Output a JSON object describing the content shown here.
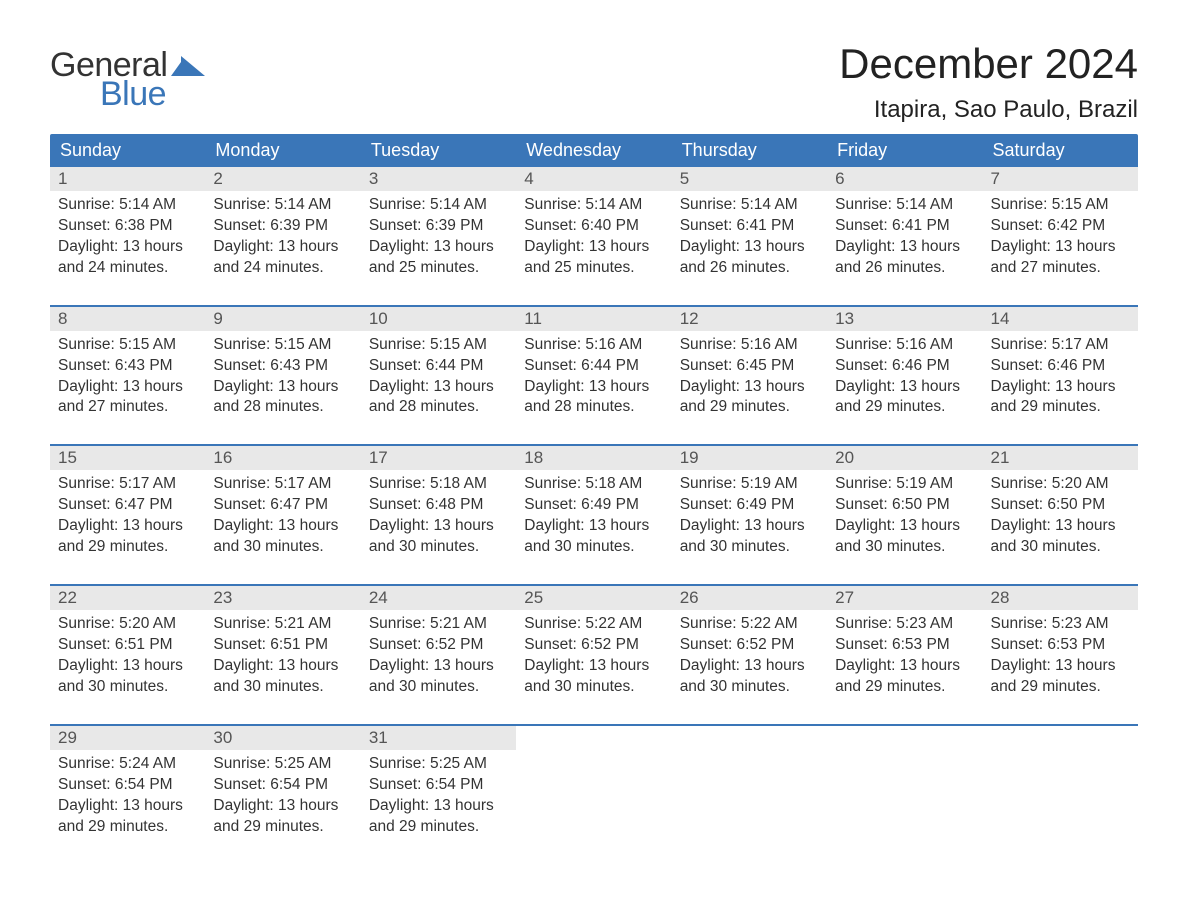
{
  "brand": {
    "word1": "General",
    "word2": "Blue",
    "text_color_1": "#333333",
    "text_color_2": "#3a76b8",
    "shape_color": "#3a76b8"
  },
  "title": {
    "month_year": "December 2024",
    "location": "Itapira, Sao Paulo, Brazil"
  },
  "theme": {
    "header_bg": "#3a76b8",
    "header_fg": "#ffffff",
    "daynum_bg": "#e8e8e8",
    "week_divider": "#3a76b8",
    "page_bg": "#ffffff",
    "body_text": "#333333"
  },
  "weekdays": [
    "Sunday",
    "Monday",
    "Tuesday",
    "Wednesday",
    "Thursday",
    "Friday",
    "Saturday"
  ],
  "weeks": [
    [
      {
        "n": "1",
        "sunrise": "Sunrise: 5:14 AM",
        "sunset": "Sunset: 6:38 PM",
        "day1": "Daylight: 13 hours",
        "day2": "and 24 minutes."
      },
      {
        "n": "2",
        "sunrise": "Sunrise: 5:14 AM",
        "sunset": "Sunset: 6:39 PM",
        "day1": "Daylight: 13 hours",
        "day2": "and 24 minutes."
      },
      {
        "n": "3",
        "sunrise": "Sunrise: 5:14 AM",
        "sunset": "Sunset: 6:39 PM",
        "day1": "Daylight: 13 hours",
        "day2": "and 25 minutes."
      },
      {
        "n": "4",
        "sunrise": "Sunrise: 5:14 AM",
        "sunset": "Sunset: 6:40 PM",
        "day1": "Daylight: 13 hours",
        "day2": "and 25 minutes."
      },
      {
        "n": "5",
        "sunrise": "Sunrise: 5:14 AM",
        "sunset": "Sunset: 6:41 PM",
        "day1": "Daylight: 13 hours",
        "day2": "and 26 minutes."
      },
      {
        "n": "6",
        "sunrise": "Sunrise: 5:14 AM",
        "sunset": "Sunset: 6:41 PM",
        "day1": "Daylight: 13 hours",
        "day2": "and 26 minutes."
      },
      {
        "n": "7",
        "sunrise": "Sunrise: 5:15 AM",
        "sunset": "Sunset: 6:42 PM",
        "day1": "Daylight: 13 hours",
        "day2": "and 27 minutes."
      }
    ],
    [
      {
        "n": "8",
        "sunrise": "Sunrise: 5:15 AM",
        "sunset": "Sunset: 6:43 PM",
        "day1": "Daylight: 13 hours",
        "day2": "and 27 minutes."
      },
      {
        "n": "9",
        "sunrise": "Sunrise: 5:15 AM",
        "sunset": "Sunset: 6:43 PM",
        "day1": "Daylight: 13 hours",
        "day2": "and 28 minutes."
      },
      {
        "n": "10",
        "sunrise": "Sunrise: 5:15 AM",
        "sunset": "Sunset: 6:44 PM",
        "day1": "Daylight: 13 hours",
        "day2": "and 28 minutes."
      },
      {
        "n": "11",
        "sunrise": "Sunrise: 5:16 AM",
        "sunset": "Sunset: 6:44 PM",
        "day1": "Daylight: 13 hours",
        "day2": "and 28 minutes."
      },
      {
        "n": "12",
        "sunrise": "Sunrise: 5:16 AM",
        "sunset": "Sunset: 6:45 PM",
        "day1": "Daylight: 13 hours",
        "day2": "and 29 minutes."
      },
      {
        "n": "13",
        "sunrise": "Sunrise: 5:16 AM",
        "sunset": "Sunset: 6:46 PM",
        "day1": "Daylight: 13 hours",
        "day2": "and 29 minutes."
      },
      {
        "n": "14",
        "sunrise": "Sunrise: 5:17 AM",
        "sunset": "Sunset: 6:46 PM",
        "day1": "Daylight: 13 hours",
        "day2": "and 29 minutes."
      }
    ],
    [
      {
        "n": "15",
        "sunrise": "Sunrise: 5:17 AM",
        "sunset": "Sunset: 6:47 PM",
        "day1": "Daylight: 13 hours",
        "day2": "and 29 minutes."
      },
      {
        "n": "16",
        "sunrise": "Sunrise: 5:17 AM",
        "sunset": "Sunset: 6:47 PM",
        "day1": "Daylight: 13 hours",
        "day2": "and 30 minutes."
      },
      {
        "n": "17",
        "sunrise": "Sunrise: 5:18 AM",
        "sunset": "Sunset: 6:48 PM",
        "day1": "Daylight: 13 hours",
        "day2": "and 30 minutes."
      },
      {
        "n": "18",
        "sunrise": "Sunrise: 5:18 AM",
        "sunset": "Sunset: 6:49 PM",
        "day1": "Daylight: 13 hours",
        "day2": "and 30 minutes."
      },
      {
        "n": "19",
        "sunrise": "Sunrise: 5:19 AM",
        "sunset": "Sunset: 6:49 PM",
        "day1": "Daylight: 13 hours",
        "day2": "and 30 minutes."
      },
      {
        "n": "20",
        "sunrise": "Sunrise: 5:19 AM",
        "sunset": "Sunset: 6:50 PM",
        "day1": "Daylight: 13 hours",
        "day2": "and 30 minutes."
      },
      {
        "n": "21",
        "sunrise": "Sunrise: 5:20 AM",
        "sunset": "Sunset: 6:50 PM",
        "day1": "Daylight: 13 hours",
        "day2": "and 30 minutes."
      }
    ],
    [
      {
        "n": "22",
        "sunrise": "Sunrise: 5:20 AM",
        "sunset": "Sunset: 6:51 PM",
        "day1": "Daylight: 13 hours",
        "day2": "and 30 minutes."
      },
      {
        "n": "23",
        "sunrise": "Sunrise: 5:21 AM",
        "sunset": "Sunset: 6:51 PM",
        "day1": "Daylight: 13 hours",
        "day2": "and 30 minutes."
      },
      {
        "n": "24",
        "sunrise": "Sunrise: 5:21 AM",
        "sunset": "Sunset: 6:52 PM",
        "day1": "Daylight: 13 hours",
        "day2": "and 30 minutes."
      },
      {
        "n": "25",
        "sunrise": "Sunrise: 5:22 AM",
        "sunset": "Sunset: 6:52 PM",
        "day1": "Daylight: 13 hours",
        "day2": "and 30 minutes."
      },
      {
        "n": "26",
        "sunrise": "Sunrise: 5:22 AM",
        "sunset": "Sunset: 6:52 PM",
        "day1": "Daylight: 13 hours",
        "day2": "and 30 minutes."
      },
      {
        "n": "27",
        "sunrise": "Sunrise: 5:23 AM",
        "sunset": "Sunset: 6:53 PM",
        "day1": "Daylight: 13 hours",
        "day2": "and 29 minutes."
      },
      {
        "n": "28",
        "sunrise": "Sunrise: 5:23 AM",
        "sunset": "Sunset: 6:53 PM",
        "day1": "Daylight: 13 hours",
        "day2": "and 29 minutes."
      }
    ],
    [
      {
        "n": "29",
        "sunrise": "Sunrise: 5:24 AM",
        "sunset": "Sunset: 6:54 PM",
        "day1": "Daylight: 13 hours",
        "day2": "and 29 minutes."
      },
      {
        "n": "30",
        "sunrise": "Sunrise: 5:25 AM",
        "sunset": "Sunset: 6:54 PM",
        "day1": "Daylight: 13 hours",
        "day2": "and 29 minutes."
      },
      {
        "n": "31",
        "sunrise": "Sunrise: 5:25 AM",
        "sunset": "Sunset: 6:54 PM",
        "day1": "Daylight: 13 hours",
        "day2": "and 29 minutes."
      },
      null,
      null,
      null,
      null
    ]
  ]
}
